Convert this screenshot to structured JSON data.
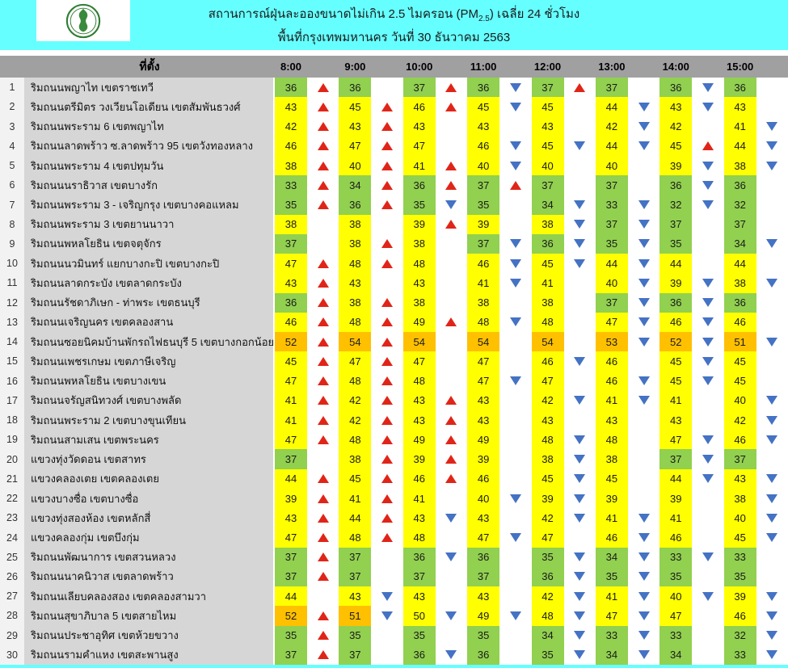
{
  "header": {
    "title_line1_prefix": "สถานการณ์ฝุ่นละอองขนาดไม่เกิน 2.5 ไมครอน (PM",
    "title_line1_sub": "2.5",
    "title_line1_suffix": ") เฉลี่ย 24 ชั่วโมง",
    "title_line2": "พื้นที่กรุงเทพมหานคร วันที่ 30 ธันวาคม 2563",
    "logo_icon": "bma-seal-icon"
  },
  "colors": {
    "banner_bg": "#66FFFF",
    "header_bar_bg": "#A0A0A0",
    "row_number_bg": "#F2F2F2",
    "location_bg": "#D6D6D6",
    "green": "#92D050",
    "yellow": "#FFFF00",
    "orange": "#FFC000",
    "arrow_up": "#E02518",
    "arrow_down": "#4472C4"
  },
  "table": {
    "location_header": "ที่ตั้ง",
    "time_columns": [
      "8:00",
      "9:00",
      "10:00",
      "11:00",
      "12:00",
      "13:00",
      "14:00",
      "15:00"
    ],
    "thresholds": {
      "green_max": 37,
      "yellow_max": 50
    },
    "rows": [
      {
        "no": 1,
        "location": "ริมถนนพญาไท เขตราชเทวี",
        "values": [
          36,
          36,
          37,
          36,
          37,
          37,
          36,
          36
        ],
        "trends": [
          "u",
          "",
          "u",
          "d",
          "u",
          "",
          "d",
          ""
        ]
      },
      {
        "no": 2,
        "location": "ริมถนนตรีมิตร วงเวียนโอเดียน เขตสัมพันธวงศ์",
        "values": [
          43,
          45,
          46,
          45,
          45,
          44,
          43,
          43
        ],
        "trends": [
          "u",
          "u",
          "u",
          "d",
          "",
          "d",
          "d",
          ""
        ]
      },
      {
        "no": 3,
        "location": "ริมถนนพระราม 6 เขตพญาไท",
        "values": [
          42,
          43,
          43,
          43,
          43,
          42,
          42,
          41
        ],
        "trends": [
          "u",
          "u",
          "",
          "",
          "",
          "d",
          "",
          "d"
        ]
      },
      {
        "no": 4,
        "location": "ริมถนนลาดพร้าว ซ.ลาดพร้าว 95 เขตวังทองหลาง",
        "values": [
          46,
          47,
          47,
          46,
          45,
          44,
          45,
          44
        ],
        "trends": [
          "u",
          "u",
          "",
          "d",
          "d",
          "d",
          "u",
          "d"
        ]
      },
      {
        "no": 5,
        "location": "ริมถนนพระราม 4 เขตปทุมวัน",
        "values": [
          38,
          40,
          41,
          40,
          40,
          40,
          39,
          38
        ],
        "trends": [
          "u",
          "u",
          "u",
          "d",
          "",
          "",
          "d",
          "d"
        ]
      },
      {
        "no": 6,
        "location": "ริมถนนนราธิวาส เขตบางรัก",
        "values": [
          33,
          34,
          36,
          37,
          37,
          37,
          36,
          36
        ],
        "trends": [
          "u",
          "u",
          "u",
          "u",
          "",
          "",
          "d",
          ""
        ]
      },
      {
        "no": 7,
        "location": "ริมถนนพระราม 3 - เจริญกรุง เขตบางคอแหลม",
        "values": [
          35,
          36,
          35,
          35,
          34,
          33,
          32,
          32
        ],
        "trends": [
          "u",
          "u",
          "d",
          "",
          "d",
          "d",
          "d",
          ""
        ]
      },
      {
        "no": 8,
        "location": "ริมถนนพระราม 3 เขตยานนาวา",
        "values": [
          38,
          38,
          39,
          39,
          38,
          37,
          37,
          37
        ],
        "trends": [
          "",
          "",
          "u",
          "",
          "d",
          "d",
          "",
          ""
        ]
      },
      {
        "no": 9,
        "location": "ริมถนนพหลโยธิน เขตจตุจักร",
        "values": [
          37,
          38,
          38,
          37,
          36,
          35,
          35,
          34
        ],
        "trends": [
          "",
          "u",
          "",
          "d",
          "d",
          "d",
          "",
          "d"
        ]
      },
      {
        "no": 10,
        "location": "ริมถนนนวมินทร์ แยกบางกะปิ เขตบางกะปิ",
        "values": [
          47,
          48,
          48,
          46,
          45,
          44,
          44,
          44
        ],
        "trends": [
          "u",
          "u",
          "",
          "d",
          "d",
          "d",
          "",
          ""
        ]
      },
      {
        "no": 11,
        "location": "ริมถนนลาดกระบัง เขตลาดกระบัง",
        "values": [
          43,
          43,
          43,
          41,
          41,
          40,
          39,
          38
        ],
        "trends": [
          "u",
          "",
          "",
          "d",
          "",
          "d",
          "d",
          "d"
        ]
      },
      {
        "no": 12,
        "location": "ริมถนนรัชดาภิเษก - ท่าพระ เขตธนบุรี",
        "values": [
          36,
          38,
          38,
          38,
          38,
          37,
          36,
          36
        ],
        "trends": [
          "u",
          "u",
          "",
          "",
          "",
          "d",
          "d",
          ""
        ]
      },
      {
        "no": 13,
        "location": "ริมถนนเจริญนคร เขตคลองสาน",
        "values": [
          46,
          48,
          49,
          48,
          48,
          47,
          46,
          46
        ],
        "trends": [
          "u",
          "u",
          "u",
          "d",
          "",
          "d",
          "d",
          ""
        ]
      },
      {
        "no": 14,
        "location": "ริมถนนซอยนิคมบ้านพักรถไฟธนบุรี 5 เขตบางกอกน้อย",
        "values": [
          52,
          54,
          54,
          54,
          54,
          53,
          52,
          51
        ],
        "trends": [
          "u",
          "u",
          "",
          "",
          "",
          "d",
          "d",
          "d"
        ]
      },
      {
        "no": 15,
        "location": "ริมถนนเพชรเกษม เขตภาษีเจริญ",
        "values": [
          45,
          47,
          47,
          47,
          46,
          46,
          45,
          45
        ],
        "trends": [
          "u",
          "u",
          "",
          "",
          "d",
          "",
          "d",
          ""
        ]
      },
      {
        "no": 16,
        "location": "ริมถนนพหลโยธิน เขตบางเขน",
        "values": [
          47,
          48,
          48,
          47,
          47,
          46,
          45,
          45
        ],
        "trends": [
          "u",
          "u",
          "",
          "d",
          "",
          "d",
          "d",
          ""
        ]
      },
      {
        "no": 17,
        "location": "ริมถนนจรัญสนิทวงศ์ เขตบางพลัด",
        "values": [
          41,
          42,
          43,
          43,
          42,
          41,
          41,
          40
        ],
        "trends": [
          "u",
          "u",
          "u",
          "",
          "d",
          "d",
          "",
          "d"
        ]
      },
      {
        "no": 18,
        "location": "ริมถนนพระราม 2 เขตบางขุนเทียน",
        "values": [
          41,
          42,
          43,
          43,
          43,
          43,
          43,
          42
        ],
        "trends": [
          "u",
          "u",
          "u",
          "",
          "",
          "",
          "",
          "d"
        ]
      },
      {
        "no": 19,
        "location": "ริมถนนสามเสน เขตพระนคร",
        "values": [
          47,
          48,
          49,
          49,
          48,
          48,
          47,
          46
        ],
        "trends": [
          "u",
          "u",
          "u",
          "",
          "d",
          "",
          "d",
          "d"
        ]
      },
      {
        "no": 20,
        "location": "แขวงทุ่งวัดดอน เขตสาทร",
        "values": [
          37,
          38,
          39,
          39,
          38,
          38,
          37,
          37
        ],
        "trends": [
          "",
          "u",
          "u",
          "",
          "d",
          "",
          "d",
          ""
        ]
      },
      {
        "no": 21,
        "location": "แขวงคลองเตย เขตคลองเตย",
        "values": [
          44,
          45,
          46,
          46,
          45,
          45,
          44,
          43
        ],
        "trends": [
          "u",
          "u",
          "u",
          "",
          "d",
          "",
          "d",
          "d"
        ]
      },
      {
        "no": 22,
        "location": "แขวงบางซื่อ เขตบางซื่อ",
        "values": [
          39,
          41,
          41,
          40,
          39,
          39,
          39,
          38
        ],
        "trends": [
          "u",
          "u",
          "",
          "d",
          "d",
          "",
          "",
          "d"
        ]
      },
      {
        "no": 23,
        "location": "แขวงทุ่งสองห้อง เขตหลักสี่",
        "values": [
          43,
          44,
          43,
          43,
          42,
          41,
          41,
          40
        ],
        "trends": [
          "u",
          "u",
          "d",
          "",
          "d",
          "d",
          "",
          "d"
        ]
      },
      {
        "no": 24,
        "location": "แขวงคลองกุ่ม เขตบึงกุ่ม",
        "values": [
          47,
          48,
          48,
          47,
          47,
          46,
          46,
          45
        ],
        "trends": [
          "u",
          "u",
          "",
          "d",
          "",
          "d",
          "",
          "d"
        ]
      },
      {
        "no": 25,
        "location": "ริมถนนพัฒนาการ เขตสวนหลวง",
        "values": [
          37,
          37,
          36,
          36,
          35,
          34,
          33,
          33
        ],
        "trends": [
          "u",
          "",
          "d",
          "",
          "d",
          "d",
          "d",
          ""
        ]
      },
      {
        "no": 26,
        "location": "ริมถนนนาคนิวาส เขตลาดพร้าว",
        "values": [
          37,
          37,
          37,
          37,
          36,
          35,
          35,
          35
        ],
        "trends": [
          "u",
          "",
          "",
          "",
          "d",
          "d",
          "",
          ""
        ]
      },
      {
        "no": 27,
        "location": "ริมถนนเลียบคลองสอง เขตคลองสามวา",
        "values": [
          44,
          43,
          43,
          43,
          42,
          41,
          40,
          39
        ],
        "trends": [
          "",
          "d",
          "",
          "",
          "d",
          "d",
          "d",
          "d"
        ]
      },
      {
        "no": 28,
        "location": "ริมถนนสุขาภิบาล 5 เขตสายไหม",
        "values": [
          52,
          51,
          50,
          49,
          48,
          47,
          47,
          46
        ],
        "trends": [
          "u",
          "d",
          "d",
          "d",
          "d",
          "d",
          "",
          "d"
        ]
      },
      {
        "no": 29,
        "location": "ริมถนนประชาอุทิศ เขตห้วยขวาง",
        "values": [
          35,
          35,
          35,
          35,
          34,
          33,
          33,
          32
        ],
        "trends": [
          "u",
          "",
          "",
          "",
          "d",
          "d",
          "",
          "d"
        ]
      },
      {
        "no": 30,
        "location": "ริมถนนรามคำแหง เขตสะพานสูง",
        "values": [
          37,
          37,
          36,
          36,
          35,
          34,
          34,
          33
        ],
        "trends": [
          "u",
          "",
          "d",
          "",
          "d",
          "d",
          "",
          "d"
        ]
      }
    ]
  }
}
